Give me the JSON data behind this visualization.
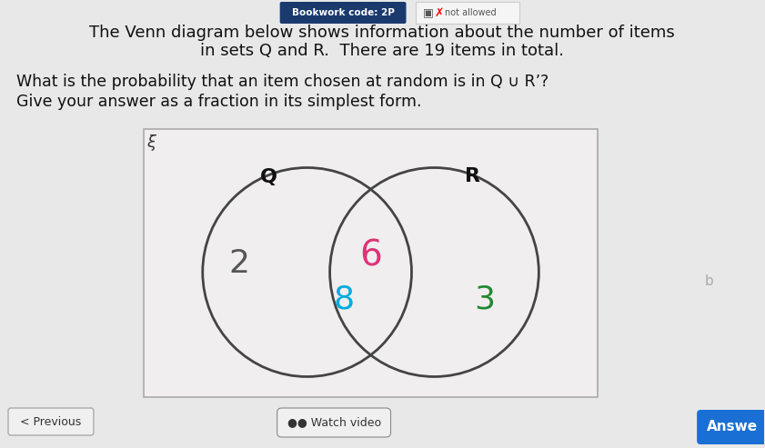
{
  "background_color": "#e8e8e8",
  "title_line1": "The Venn diagram below shows information about the number of items",
  "title_line2": "in sets Q and R.  There are 19 items in total.",
  "question_line1": "What is the probability that an item chosen at random is in Q ∪ R’?",
  "question_line2": "Give your answer as a fraction in its simplest form.",
  "bookwork_code": "Bookwork code: 2P",
  "not_allowed_text": "not allowed",
  "venn_Q_label": "Q",
  "venn_R_label": "R",
  "venn_only_Q": "2",
  "venn_intersection_Q": "8",
  "venn_intersection_center": "6",
  "venn_only_R": "3",
  "xi_label": "ξ",
  "previous_btn": "< Previous",
  "watch_video_btn": "●● Watch video",
  "answer_btn": "Answe",
  "color_only_Q": "#555555",
  "color_intersection_Q": "#00aadd",
  "color_intersection_center": "#dd3377",
  "color_only_R": "#228833",
  "color_Q_label": "#111111",
  "color_R_label": "#111111",
  "color_xi": "#333333",
  "venn_circle_color": "#444444",
  "rect_facecolor": "#f0eeee",
  "rect_edgecolor": "#aaaaaa",
  "page_bg": "#e8e8e8",
  "bookwork_bg": "#1a3a6e",
  "bookwork_text_color": "#ffffff",
  "not_allowed_bg": "#f5f5f5",
  "not_allowed_edge": "#cccccc",
  "prev_btn_bg": "#f0f0f0",
  "prev_btn_edge": "#aaaaaa",
  "watch_btn_bg": "#f0f0f0",
  "watch_btn_edge": "#888888",
  "answer_btn_bg": "#1a6fd4",
  "answer_btn_edge": "#1555aa"
}
